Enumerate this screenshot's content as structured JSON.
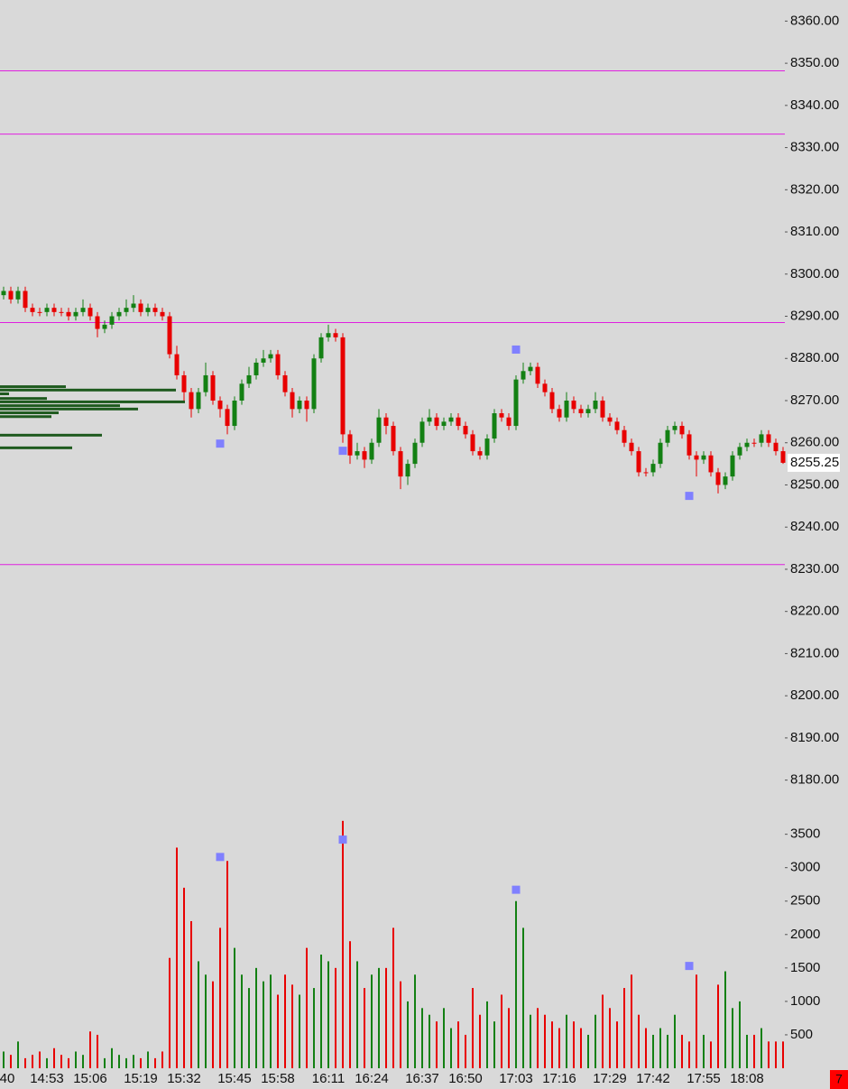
{
  "chart_data": [
    {
      "type": "candlestick",
      "open": [
        8294,
        8295,
        8296,
        8294,
        8296,
        8292,
        8291,
        8291,
        8292,
        8291,
        8291,
        8290,
        8291,
        8292,
        8290,
        8287,
        8288,
        8290,
        8291,
        8292,
        8293,
        8291,
        8292,
        8291,
        8290,
        8281,
        8276,
        8272,
        8268,
        8272,
        8276,
        8270,
        8268,
        8264,
        8270,
        8274,
        8276,
        8279,
        8280,
        8281,
        8276,
        8272,
        8268,
        8270,
        8268,
        8280,
        8285,
        8286,
        8285,
        8262,
        8257,
        8258,
        8256,
        8260,
        8266,
        8264,
        8258,
        8252,
        8255,
        8260,
        8265,
        8266,
        8264,
        8265,
        8266,
        8264,
        8262,
        8258,
        8257,
        8261,
        8267,
        8266,
        8264,
        8275,
        8277,
        8278,
        8274,
        8272,
        8268,
        8266,
        8270,
        8268,
        8267,
        8268,
        8270,
        8266,
        8265,
        8263,
        8260,
        8258,
        8253,
        8253,
        8255,
        8260,
        8263,
        8264,
        8262,
        8257,
        8256,
        8257,
        8253,
        8250,
        8252,
        8257,
        8259,
        8260,
        8260,
        8262,
        8260,
        8258
      ],
      "high": [
        8296,
        8297,
        8297,
        8297,
        8297,
        8293,
        8292,
        8293,
        8293,
        8292,
        8292,
        8292,
        8294,
        8293,
        8291,
        8289,
        8291,
        8292,
        8294,
        8295,
        8294,
        8293,
        8293,
        8292,
        8291,
        8283,
        8277,
        8273,
        8273,
        8279,
        8277,
        8271,
        8269,
        8271,
        8275,
        8278,
        8280,
        8282,
        8282,
        8282,
        8277,
        8273,
        8271,
        8271,
        8281,
        8286,
        8288,
        8287,
        8286,
        8263,
        8260,
        8259,
        8261,
        8268,
        8267,
        8265,
        8259,
        8256,
        8261,
        8266,
        8268,
        8267,
        8266,
        8267,
        8267,
        8265,
        8263,
        8259,
        8262,
        8268,
        8268,
        8267,
        8276,
        8279,
        8279,
        8279,
        8275,
        8273,
        8269,
        8272,
        8271,
        8269,
        8269,
        8272,
        8271,
        8267,
        8266,
        8264,
        8261,
        8259,
        8254,
        8256,
        8261,
        8264,
        8265,
        8265,
        8263,
        8258,
        8258,
        8258,
        8254,
        8253,
        8258,
        8260,
        8261,
        8261,
        8263,
        8263,
        8261,
        8259
      ],
      "low": [
        8293,
        8294,
        8293,
        8293,
        8291,
        8290,
        8290,
        8290,
        8290,
        8290,
        8289,
        8289,
        8290,
        8289,
        8285,
        8286,
        8287,
        8289,
        8290,
        8291,
        8290,
        8290,
        8290,
        8289,
        8280,
        8275,
        8270,
        8266,
        8267,
        8271,
        8269,
        8266,
        8262,
        8263,
        8269,
        8273,
        8275,
        8278,
        8279,
        8275,
        8271,
        8266,
        8267,
        8265,
        8267,
        8279,
        8284,
        8284,
        8260,
        8255,
        8256,
        8254,
        8255,
        8259,
        8262,
        8257,
        8249,
        8250,
        8254,
        8259,
        8264,
        8263,
        8263,
        8264,
        8263,
        8261,
        8257,
        8256,
        8256,
        8260,
        8265,
        8263,
        8263,
        8274,
        8276,
        8273,
        8271,
        8267,
        8265,
        8265,
        8267,
        8266,
        8266,
        8267,
        8265,
        8264,
        8262,
        8259,
        8257,
        8252,
        8252,
        8252,
        8254,
        8259,
        8262,
        8261,
        8256,
        8252,
        8255,
        8252,
        8248,
        8249,
        8251,
        8256,
        8258,
        8259,
        8259,
        8259,
        8257,
        8255
      ],
      "close": [
        8295,
        8296,
        8294,
        8296,
        8292,
        8291,
        8291,
        8292,
        8291,
        8291,
        8290,
        8291,
        8292,
        8290,
        8287,
        8288,
        8290,
        8291,
        8292,
        8293,
        8291,
        8292,
        8291,
        8290,
        8281,
        8276,
        8272,
        8268,
        8272,
        8276,
        8270,
        8268,
        8264,
        8270,
        8274,
        8276,
        8279,
        8280,
        8281,
        8276,
        8272,
        8268,
        8270,
        8268,
        8280,
        8285,
        8286,
        8285,
        8262,
        8257,
        8258,
        8256,
        8260,
        8266,
        8264,
        8258,
        8252,
        8255,
        8260,
        8265,
        8266,
        8264,
        8265,
        8266,
        8264,
        8262,
        8258,
        8257,
        8261,
        8267,
        8266,
        8264,
        8275,
        8277,
        8278,
        8274,
        8272,
        8268,
        8266,
        8270,
        8268,
        8267,
        8268,
        8270,
        8266,
        8265,
        8263,
        8260,
        8258,
        8253,
        8253,
        8255,
        8260,
        8263,
        8264,
        8262,
        8257,
        8256,
        8257,
        8253,
        8250,
        8252,
        8257,
        8259,
        8260,
        8260,
        8262,
        8260,
        8258,
        8255.25
      ],
      "up_color": "#138013",
      "down_color": "#e80000",
      "ylim": [
        8175,
        8365
      ],
      "yticks": [
        {
          "value": 8180,
          "label": "8180.00"
        },
        {
          "value": 8190,
          "label": "8190.00"
        },
        {
          "value": 8200,
          "label": "8200.00"
        },
        {
          "value": 8210,
          "label": "8210.00"
        },
        {
          "value": 8220,
          "label": "8220.00"
        },
        {
          "value": 8230,
          "label": "8230.00"
        },
        {
          "value": 8240,
          "label": "8240.00"
        },
        {
          "value": 8250,
          "label": "8250.00"
        },
        {
          "value": 8260,
          "label": "8260.00"
        },
        {
          "value": 8270,
          "label": "8270.00"
        },
        {
          "value": 8280,
          "label": "8280.00"
        },
        {
          "value": 8290,
          "label": "8290.00"
        },
        {
          "value": 8300,
          "label": "8300.00"
        },
        {
          "value": 8310,
          "label": "8310.00"
        },
        {
          "value": 8320,
          "label": "8320.00"
        },
        {
          "value": 8330,
          "label": "8330.00"
        },
        {
          "value": 8340,
          "label": "8340.00"
        },
        {
          "value": 8350,
          "label": "8350.00"
        },
        {
          "value": 8360,
          "label": "8360.00"
        }
      ],
      "levels": {
        "color": "#e020e0",
        "values": [
          8348.2,
          8333.2,
          8288.5,
          8231.1
        ]
      },
      "markers": {
        "color": "#8080ff",
        "values": [
          null,
          null,
          null,
          null,
          null,
          null,
          null,
          null,
          null,
          null,
          null,
          null,
          null,
          null,
          null,
          null,
          null,
          null,
          null,
          null,
          null,
          null,
          null,
          null,
          null,
          null,
          null,
          null,
          null,
          null,
          null,
          8259.8,
          null,
          null,
          null,
          null,
          null,
          null,
          null,
          null,
          null,
          null,
          null,
          null,
          null,
          null,
          null,
          null,
          8258.1,
          null,
          null,
          null,
          null,
          null,
          null,
          null,
          null,
          null,
          null,
          null,
          null,
          null,
          null,
          null,
          null,
          null,
          null,
          null,
          null,
          null,
          null,
          null,
          8282.1,
          null,
          null,
          null,
          null,
          null,
          null,
          null,
          null,
          null,
          null,
          null,
          null,
          null,
          null,
          null,
          null,
          null,
          null,
          null,
          null,
          null,
          null,
          null,
          8247.4,
          null,
          null,
          null,
          null,
          null,
          null,
          null,
          null,
          null,
          null,
          null,
          null,
          null
        ]
      },
      "profile": {
        "color": "#1e5a1e",
        "prices": [
          8273.3,
          8272.5,
          8271.6,
          8270.5,
          8269.7,
          8268.8,
          8268.0,
          8267.1,
          8266.2,
          8261.8,
          8258.8
        ],
        "values": [
          73,
          195,
          10,
          52,
          205,
          133,
          153,
          65,
          57,
          113,
          80
        ]
      }
    },
    {
      "type": "bar",
      "categories": [
        "40",
        null,
        null,
        null,
        null,
        null,
        null,
        "14:53",
        null,
        null,
        null,
        null,
        null,
        "15:06",
        null,
        null,
        null,
        null,
        null,
        null,
        "15:19",
        null,
        null,
        null,
        null,
        null,
        "15:32",
        null,
        null,
        null,
        null,
        null,
        null,
        "15:45",
        null,
        null,
        null,
        null,
        null,
        "15:58",
        null,
        null,
        null,
        null,
        null,
        null,
        "16:11",
        null,
        null,
        null,
        null,
        null,
        "16:24",
        null,
        null,
        null,
        null,
        null,
        null,
        "16:37",
        null,
        null,
        null,
        null,
        null,
        "16:50",
        null,
        null,
        null,
        null,
        null,
        null,
        "17:03",
        null,
        null,
        null,
        null,
        null,
        "17:16",
        null,
        null,
        null,
        null,
        null,
        null,
        "17:29",
        null,
        null,
        null,
        null,
        null,
        "17:42",
        null,
        null,
        null,
        null,
        null,
        null,
        "17:55",
        null,
        null,
        null,
        null,
        null,
        "18:08",
        null,
        null,
        null,
        null,
        null
      ],
      "values": [
        150,
        250,
        200,
        400,
        150,
        200,
        250,
        150,
        300,
        200,
        150,
        250,
        200,
        550,
        500,
        150,
        300,
        200,
        150,
        200,
        150,
        250,
        150,
        250,
        1650,
        3300,
        2700,
        2200,
        1600,
        1400,
        1300,
        2100,
        3100,
        1800,
        1400,
        1200,
        1500,
        1300,
        1400,
        1100,
        1400,
        1250,
        1100,
        1800,
        1200,
        1700,
        1600,
        1500,
        3700,
        1900,
        1600,
        1200,
        1400,
        1500,
        1500,
        2100,
        1300,
        1000,
        1400,
        900,
        800,
        700,
        900,
        600,
        700,
        500,
        1200,
        800,
        1000,
        700,
        1100,
        900,
        2500,
        2100,
        800,
        900,
        800,
        700,
        600,
        800,
        700,
        600,
        500,
        800,
        1100,
        900,
        700,
        1200,
        1400,
        800,
        600,
        500,
        600,
        500,
        800,
        500,
        400,
        1400,
        500,
        400,
        1250,
        1450,
        900,
        1000,
        500,
        500,
        600,
        400,
        400,
        400
      ],
      "ylim": [
        0,
        3900
      ],
      "yticks": [
        500,
        1000,
        1500,
        2000,
        2500,
        3000,
        3500
      ],
      "markers": {
        "color": "#8080ff",
        "values": [
          null,
          null,
          null,
          null,
          null,
          null,
          null,
          null,
          null,
          null,
          null,
          null,
          null,
          null,
          null,
          null,
          null,
          null,
          null,
          null,
          null,
          null,
          null,
          null,
          null,
          null,
          null,
          null,
          null,
          null,
          null,
          3160,
          null,
          null,
          null,
          null,
          null,
          null,
          null,
          null,
          null,
          null,
          null,
          null,
          null,
          null,
          null,
          null,
          3420,
          null,
          null,
          null,
          null,
          null,
          null,
          null,
          null,
          null,
          null,
          null,
          null,
          null,
          null,
          null,
          null,
          null,
          null,
          null,
          null,
          null,
          null,
          null,
          2670,
          null,
          null,
          null,
          null,
          null,
          null,
          null,
          null,
          null,
          null,
          null,
          null,
          null,
          null,
          null,
          null,
          null,
          null,
          null,
          null,
          null,
          null,
          null,
          1530,
          null,
          null,
          null,
          null,
          null,
          null,
          null,
          null,
          null,
          null,
          null,
          null,
          null
        ]
      }
    }
  ],
  "badge": "7"
}
